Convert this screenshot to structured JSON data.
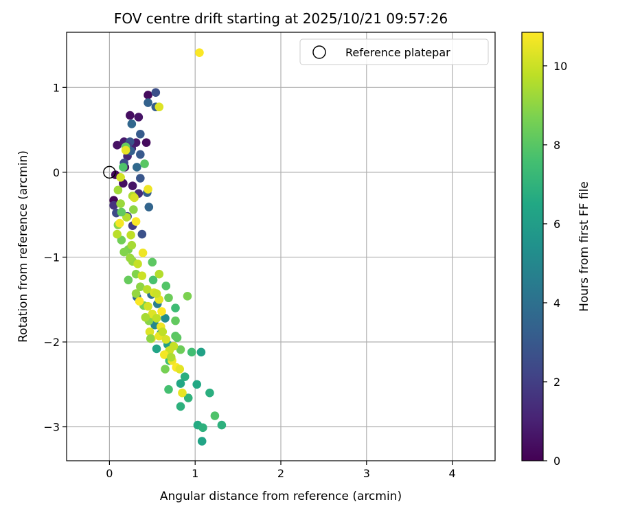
{
  "chart_data": {
    "type": "scatter",
    "title": "FOV centre drift starting at 2025/10/21 09:57:26",
    "xlabel": "Angular distance from reference (arcmin)",
    "ylabel": "Rotation from reference (arcmin)",
    "xlim": [
      -0.5,
      4.5
    ],
    "ylim": [
      -3.4,
      1.65
    ],
    "xticks": [
      0,
      1,
      2,
      3,
      4
    ],
    "xtick_labels": [
      "0",
      "1",
      "2",
      "3",
      "4"
    ],
    "yticks": [
      1,
      0,
      -1,
      -2,
      -3
    ],
    "ytick_labels": [
      "1",
      "0",
      "−1",
      "−2",
      "−3"
    ],
    "grid": true,
    "legend": {
      "position": "top-right",
      "entries": [
        "Reference platepar"
      ]
    },
    "reference_point": {
      "x": 0,
      "y": 0,
      "label": "Reference platepar"
    },
    "colorbar": {
      "label": "Hours from first FF file",
      "min": 0,
      "max": 10.85,
      "ticks": [
        0,
        2,
        4,
        6,
        8,
        10
      ],
      "tick_labels": [
        "0",
        "2",
        "4",
        "6",
        "8",
        "10"
      ],
      "colormap": "viridis"
    },
    "points": [
      {
        "x": 0.45,
        "y": 0.91,
        "t": 0.3
      },
      {
        "x": 0.24,
        "y": 0.67,
        "t": 0.4
      },
      {
        "x": 0.34,
        "y": 0.65,
        "t": 0.6
      },
      {
        "x": 0.09,
        "y": 0.32,
        "t": 0.5
      },
      {
        "x": 0.17,
        "y": 0.36,
        "t": 0.8
      },
      {
        "x": 0.31,
        "y": 0.35,
        "t": 0.7
      },
      {
        "x": 0.43,
        "y": 0.35,
        "t": 0.3
      },
      {
        "x": 0.26,
        "y": 0.28,
        "t": 1.0
      },
      {
        "x": 0.18,
        "y": 0.06,
        "t": 0.5
      },
      {
        "x": 0.07,
        "y": -0.03,
        "t": 0.2
      },
      {
        "x": 0.16,
        "y": -0.13,
        "t": 0.4
      },
      {
        "x": 0.27,
        "y": -0.16,
        "t": 0.6
      },
      {
        "x": 0.05,
        "y": -0.33,
        "t": 0.1
      },
      {
        "x": 0.34,
        "y": -0.25,
        "t": 1.4
      },
      {
        "x": 0.21,
        "y": 0.19,
        "t": 1.2
      },
      {
        "x": 0.54,
        "y": 0.94,
        "t": 2.6
      },
      {
        "x": 0.45,
        "y": 0.82,
        "t": 3.4
      },
      {
        "x": 0.54,
        "y": 0.77,
        "t": 3.2
      },
      {
        "x": 0.26,
        "y": 0.57,
        "t": 3.6
      },
      {
        "x": 0.36,
        "y": 0.45,
        "t": 3.1
      },
      {
        "x": 0.24,
        "y": 0.36,
        "t": 2.8
      },
      {
        "x": 0.21,
        "y": 0.31,
        "t": 2.2
      },
      {
        "x": 0.25,
        "y": 0.25,
        "t": 3.3
      },
      {
        "x": 0.36,
        "y": 0.21,
        "t": 3.0
      },
      {
        "x": 0.17,
        "y": 0.11,
        "t": 2.5
      },
      {
        "x": 0.32,
        "y": 0.06,
        "t": 3.7
      },
      {
        "x": 0.36,
        "y": -0.07,
        "t": 2.9
      },
      {
        "x": 0.44,
        "y": -0.24,
        "t": 3.2
      },
      {
        "x": 0.46,
        "y": -0.41,
        "t": 3.5
      },
      {
        "x": 0.38,
        "y": -0.73,
        "t": 2.7
      },
      {
        "x": 0.27,
        "y": -0.63,
        "t": 1.9
      },
      {
        "x": 0.21,
        "y": -0.52,
        "t": 2.3
      },
      {
        "x": 0.05,
        "y": -0.39,
        "t": 1.6
      },
      {
        "x": 0.08,
        "y": -0.48,
        "t": 2.4
      },
      {
        "x": 0.32,
        "y": -1.47,
        "t": 3.8
      },
      {
        "x": 0.49,
        "y": -1.44,
        "t": 4.0
      },
      {
        "x": 0.56,
        "y": -1.55,
        "t": 4.6
      },
      {
        "x": 0.65,
        "y": -1.72,
        "t": 5.2
      },
      {
        "x": 0.53,
        "y": -1.8,
        "t": 5.0
      },
      {
        "x": 0.6,
        "y": -1.9,
        "t": 5.6
      },
      {
        "x": 0.68,
        "y": -2.03,
        "t": 6.1
      },
      {
        "x": 0.55,
        "y": -2.08,
        "t": 6.3
      },
      {
        "x": 0.83,
        "y": -2.49,
        "t": 6.4
      },
      {
        "x": 0.88,
        "y": -2.41,
        "t": 6.8
      },
      {
        "x": 0.92,
        "y": -2.66,
        "t": 7.0
      },
      {
        "x": 0.83,
        "y": -2.76,
        "t": 6.9
      },
      {
        "x": 1.07,
        "y": -2.12,
        "t": 6.2
      },
      {
        "x": 1.02,
        "y": -2.5,
        "t": 6.5
      },
      {
        "x": 1.03,
        "y": -2.98,
        "t": 6.6
      },
      {
        "x": 1.09,
        "y": -3.01,
        "t": 6.9
      },
      {
        "x": 1.08,
        "y": -3.17,
        "t": 6.3
      },
      {
        "x": 1.17,
        "y": -2.6,
        "t": 6.8
      },
      {
        "x": 1.31,
        "y": -2.98,
        "t": 6.9
      },
      {
        "x": 0.96,
        "y": -2.12,
        "t": 7.5
      },
      {
        "x": 1.23,
        "y": -2.87,
        "t": 7.8
      },
      {
        "x": 0.69,
        "y": -2.56,
        "t": 7.6
      },
      {
        "x": 0.77,
        "y": -1.6,
        "t": 7.4
      },
      {
        "x": 0.66,
        "y": -1.34,
        "t": 7.9
      },
      {
        "x": 0.51,
        "y": -1.27,
        "t": 7.7
      },
      {
        "x": 0.5,
        "y": -1.06,
        "t": 8.1
      },
      {
        "x": 0.41,
        "y": 0.1,
        "t": 8.0
      },
      {
        "x": 0.19,
        "y": 0.3,
        "t": 8.3
      },
      {
        "x": 0.16,
        "y": 0.06,
        "t": 7.8
      },
      {
        "x": 0.77,
        "y": -1.75,
        "t": 8.2
      },
      {
        "x": 0.83,
        "y": -2.09,
        "t": 8.4
      },
      {
        "x": 0.91,
        "y": -1.46,
        "t": 8.7
      },
      {
        "x": 0.77,
        "y": -1.93,
        "t": 8.0
      },
      {
        "x": 0.7,
        "y": -2.22,
        "t": 7.5
      },
      {
        "x": 0.46,
        "y": -1.75,
        "t": 8.9
      },
      {
        "x": 0.4,
        "y": -1.57,
        "t": 8.6
      },
      {
        "x": 0.36,
        "y": -1.35,
        "t": 9.0
      },
      {
        "x": 0.31,
        "y": -1.2,
        "t": 8.8
      },
      {
        "x": 0.27,
        "y": -1.05,
        "t": 9.1
      },
      {
        "x": 0.22,
        "y": -0.91,
        "t": 8.7
      },
      {
        "x": 0.14,
        "y": -0.8,
        "t": 8.5
      },
      {
        "x": 0.1,
        "y": -0.62,
        "t": 8.9
      },
      {
        "x": 0.13,
        "y": -0.37,
        "t": 9.2
      },
      {
        "x": 0.27,
        "y": -0.28,
        "t": 9.5
      },
      {
        "x": 0.1,
        "y": -0.21,
        "t": 9.3
      },
      {
        "x": 0.2,
        "y": -0.53,
        "t": 9.6
      },
      {
        "x": 0.25,
        "y": -0.74,
        "t": 9.8
      },
      {
        "x": 0.26,
        "y": -0.86,
        "t": 9.4
      },
      {
        "x": 0.33,
        "y": -1.08,
        "t": 9.9
      },
      {
        "x": 0.38,
        "y": -1.22,
        "t": 10.0
      },
      {
        "x": 0.44,
        "y": -1.38,
        "t": 9.7
      },
      {
        "x": 0.52,
        "y": -1.42,
        "t": 10.2
      },
      {
        "x": 0.58,
        "y": -1.5,
        "t": 10.4
      },
      {
        "x": 0.45,
        "y": -1.58,
        "t": 10.1
      },
      {
        "x": 0.5,
        "y": -1.67,
        "t": 10.3
      },
      {
        "x": 0.55,
        "y": -1.72,
        "t": 9.8
      },
      {
        "x": 0.6,
        "y": -1.82,
        "t": 10.6
      },
      {
        "x": 0.58,
        "y": -1.93,
        "t": 10.5
      },
      {
        "x": 0.66,
        "y": -1.97,
        "t": 10.2
      },
      {
        "x": 0.49,
        "y": -1.96,
        "t": 10.7
      },
      {
        "x": 0.7,
        "y": -2.1,
        "t": 10.0
      },
      {
        "x": 0.73,
        "y": -2.22,
        "t": 10.6
      },
      {
        "x": 0.78,
        "y": -2.3,
        "t": 10.8
      },
      {
        "x": 0.82,
        "y": -2.32,
        "t": 10.4
      },
      {
        "x": 0.85,
        "y": -2.6,
        "t": 10.5
      },
      {
        "x": 0.58,
        "y": 0.77,
        "t": 10.3
      },
      {
        "x": 1.05,
        "y": 1.41,
        "t": 10.8
      },
      {
        "x": 0.45,
        "y": -0.2,
        "t": 10.6
      },
      {
        "x": 0.13,
        "y": -0.06,
        "t": 10.1
      },
      {
        "x": 0.12,
        "y": -0.6,
        "t": 10.7
      },
      {
        "x": 0.31,
        "y": -0.58,
        "t": 10.8
      },
      {
        "x": 0.19,
        "y": 0.26,
        "t": 10.5
      },
      {
        "x": 0.29,
        "y": -0.3,
        "t": 10.2
      },
      {
        "x": 0.39,
        "y": -0.95,
        "t": 10.6
      },
      {
        "x": 0.35,
        "y": -1.52,
        "t": 10.8
      },
      {
        "x": 0.61,
        "y": -1.64,
        "t": 10.9
      },
      {
        "x": 0.55,
        "y": -1.43,
        "t": 10.0
      },
      {
        "x": 0.47,
        "y": -1.88,
        "t": 10.3
      },
      {
        "x": 0.64,
        "y": -2.15,
        "t": 10.7
      },
      {
        "x": 0.75,
        "y": -2.05,
        "t": 9.9
      },
      {
        "x": 0.31,
        "y": -1.43,
        "t": 9.1
      },
      {
        "x": 0.42,
        "y": -1.71,
        "t": 9.4
      },
      {
        "x": 0.24,
        "y": -1.01,
        "t": 9.2
      },
      {
        "x": 0.17,
        "y": -0.94,
        "t": 8.8
      },
      {
        "x": 0.22,
        "y": -1.27,
        "t": 8.3
      },
      {
        "x": 0.48,
        "y": -1.96,
        "t": 9.0
      },
      {
        "x": 0.65,
        "y": -2.32,
        "t": 8.6
      },
      {
        "x": 0.72,
        "y": -2.18,
        "t": 9.5
      },
      {
        "x": 0.58,
        "y": -1.2,
        "t": 9.6
      },
      {
        "x": 0.69,
        "y": -1.48,
        "t": 8.4
      },
      {
        "x": 0.62,
        "y": -1.88,
        "t": 9.8
      },
      {
        "x": 0.79,
        "y": -1.95,
        "t": 8.1
      },
      {
        "x": 0.28,
        "y": -0.44,
        "t": 9.0
      },
      {
        "x": 0.09,
        "y": -0.73,
        "t": 9.7
      },
      {
        "x": 0.14,
        "y": -0.47,
        "t": 8.2
      }
    ]
  }
}
